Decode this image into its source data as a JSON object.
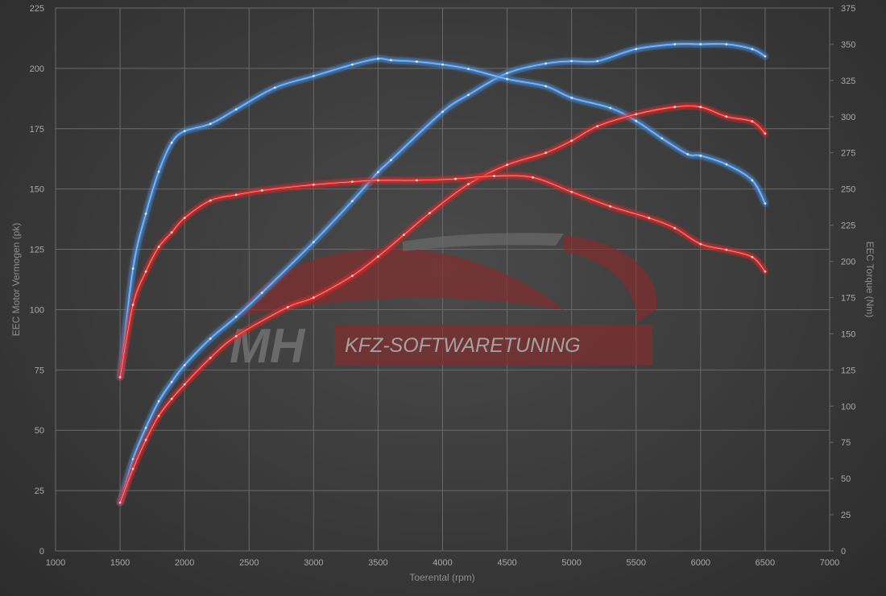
{
  "logo": {
    "mark": "MH",
    "text": "KFZ-SOFTWARETUNING"
  },
  "chart_data": {
    "type": "line",
    "xlabel": "Toerental (rpm)",
    "ylabel_left": "EEC Motor Vermogen (pk)",
    "ylabel_right": "EEC Torque (Nm)",
    "xlim": [
      1000,
      7000
    ],
    "ylim_left": [
      0,
      225
    ],
    "ylim_right": [
      0,
      375
    ],
    "x_ticks": [
      1000,
      1500,
      2000,
      2500,
      3000,
      3500,
      4000,
      4500,
      5000,
      5500,
      6000,
      6500,
      7000
    ],
    "y_ticks_left": [
      0,
      25,
      50,
      75,
      100,
      125,
      150,
      175,
      200,
      225
    ],
    "y_ticks_right": [
      0,
      25,
      50,
      75,
      100,
      125,
      150,
      175,
      200,
      225,
      250,
      275,
      300,
      325,
      350,
      375
    ],
    "grid": true,
    "colors": {
      "tuned": "#4a90e0",
      "stock": "#e02a2a"
    },
    "series": [
      {
        "key": "power_tuned",
        "axis": "left",
        "color": "#4a90e0",
        "x": [
          1500,
          1600,
          1700,
          1800,
          1900,
          2000,
          2200,
          2400,
          2600,
          3000,
          3300,
          3500,
          3600,
          4000,
          4200,
          4500,
          4800,
          5000,
          5200,
          5500,
          5800,
          6000,
          6200,
          6400,
          6500
        ],
        "y": [
          20,
          38,
          51,
          62,
          70,
          77,
          88,
          97,
          107,
          128,
          145,
          157,
          162,
          182,
          189,
          198,
          202,
          203,
          203,
          208,
          210,
          210,
          210,
          208,
          205
        ]
      },
      {
        "key": "torque_tuned",
        "axis": "right",
        "color": "#4a90e0",
        "x": [
          1500,
          1600,
          1700,
          1800,
          1900,
          2000,
          2200,
          2400,
          2700,
          3000,
          3300,
          3500,
          3600,
          3800,
          4000,
          4200,
          4500,
          4800,
          5000,
          5300,
          5500,
          5700,
          5900,
          6000,
          6200,
          6400,
          6500
        ],
        "y": [
          120,
          195,
          233,
          262,
          282,
          290,
          295,
          305,
          320,
          328,
          336,
          340,
          339,
          338,
          336,
          333,
          326,
          321,
          313,
          306,
          297,
          285,
          274,
          273,
          267,
          256,
          240
        ]
      },
      {
        "key": "power_stock",
        "axis": "left",
        "color": "#e02a2a",
        "x": [
          1500,
          1600,
          1700,
          1800,
          1900,
          2000,
          2200,
          2400,
          2800,
          3000,
          3300,
          3500,
          3700,
          3900,
          4200,
          4500,
          4800,
          5000,
          5200,
          5500,
          5800,
          6000,
          6200,
          6400,
          6500
        ],
        "y": [
          20,
          34,
          46,
          56,
          63,
          69,
          80,
          89,
          101,
          105,
          114,
          122,
          131,
          140,
          152,
          160,
          165,
          170,
          176,
          181,
          184,
          184,
          180,
          178,
          173
        ]
      },
      {
        "key": "torque_stock",
        "axis": "right",
        "color": "#e02a2a",
        "x": [
          1500,
          1600,
          1700,
          1800,
          1900,
          2000,
          2200,
          2400,
          2600,
          3000,
          3300,
          3500,
          3800,
          4100,
          4400,
          4700,
          5000,
          5300,
          5600,
          5800,
          6000,
          6200,
          6400,
          6500
        ],
        "y": [
          120,
          170,
          193,
          210,
          220,
          230,
          242,
          246,
          249,
          253,
          255,
          256,
          256,
          257,
          259,
          258,
          248,
          238,
          230,
          223,
          212,
          208,
          203,
          193
        ]
      }
    ]
  }
}
